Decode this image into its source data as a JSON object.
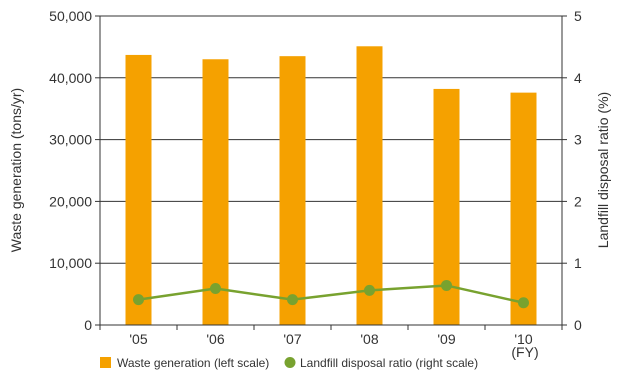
{
  "chart_data": {
    "type": "bar",
    "categories": [
      "'05",
      "'06",
      "'07",
      "'08",
      "'09",
      "'10"
    ],
    "x_unit": "(FY)",
    "series": [
      {
        "name": "Waste generation (left scale)",
        "type": "bar",
        "axis": "left",
        "color": "#F5A100",
        "values": [
          43700,
          43000,
          43500,
          45100,
          38200,
          37600
        ]
      },
      {
        "name": "Landfill disposal ratio (right scale)",
        "type": "line",
        "axis": "right",
        "color": "#78A22F",
        "values": [
          0.41,
          0.59,
          0.41,
          0.56,
          0.64,
          0.36
        ]
      }
    ],
    "ylabel_left": "Waste generation (tons/yr)",
    "ylabel_right": "Landfill disposal ratio (%)",
    "ylim_left": [
      0,
      50000
    ],
    "ylim_right": [
      0,
      5
    ],
    "yticks_left": [
      "0",
      "10,000",
      "20,000",
      "30,000",
      "40,000",
      "50,000"
    ],
    "yticks_right": [
      "0",
      "1",
      "2",
      "3",
      "4",
      "5"
    ],
    "grid": true,
    "legend_position": "bottom"
  }
}
